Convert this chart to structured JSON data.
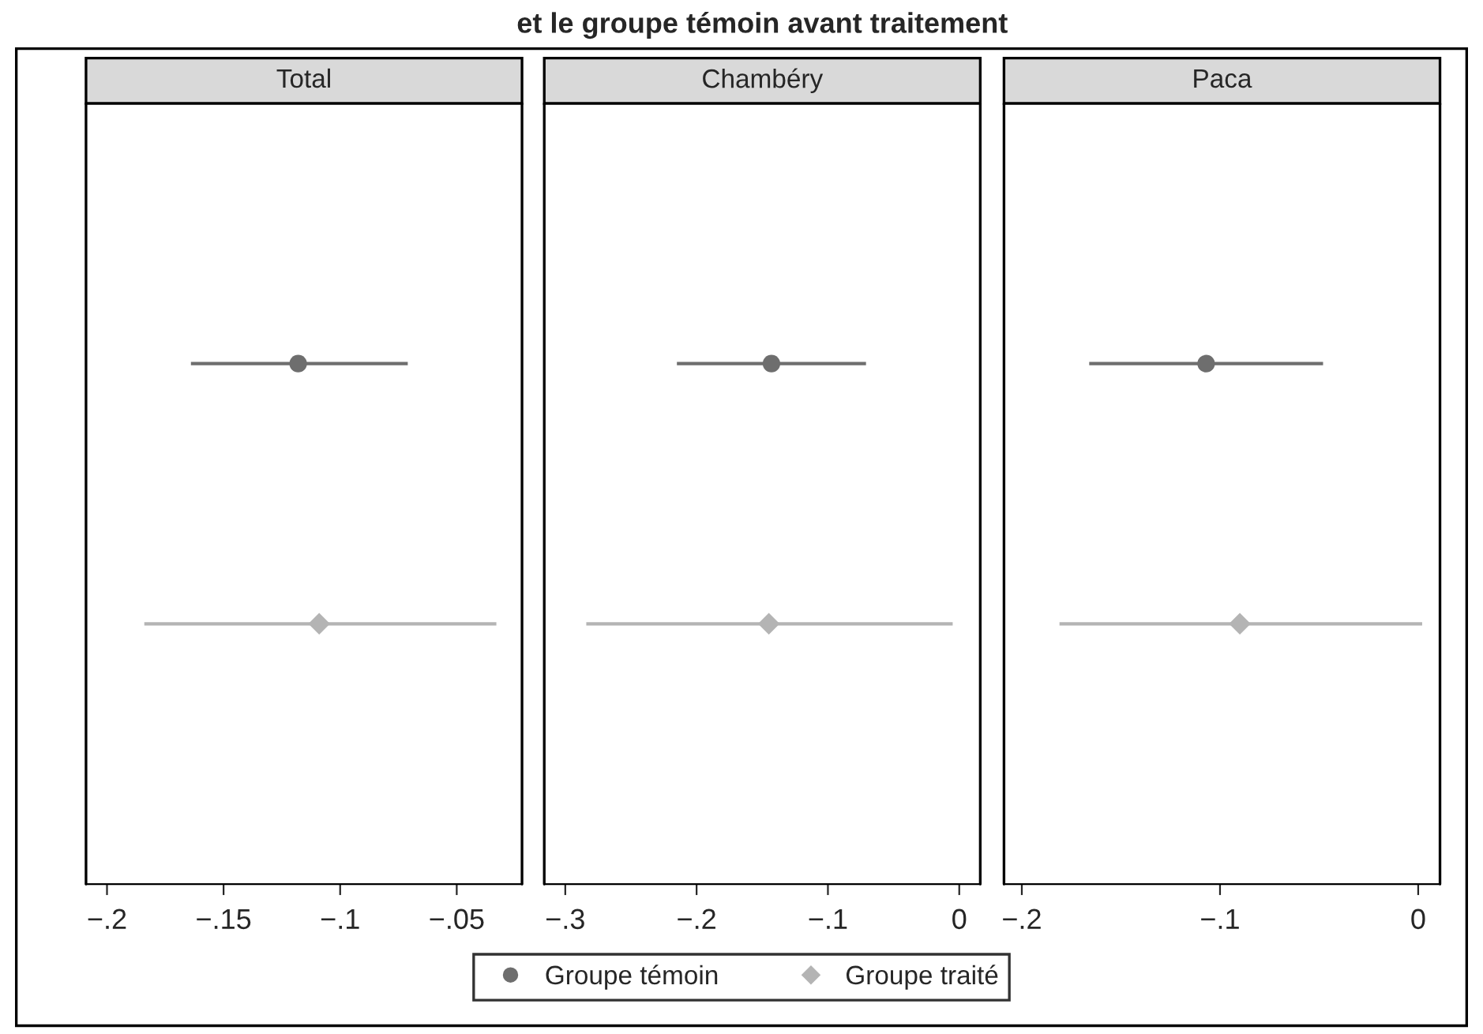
{
  "chart_data": [
    {
      "type": "scatter",
      "orientation": "horizontal",
      "subtitle": "Total",
      "categories": [
        null,
        null
      ],
      "legend": "bottom",
      "grid": false,
      "xlim": [
        -0.209,
        -0.022
      ],
      "xticks": [
        {
          "value": -0.2,
          "label": "−.2"
        },
        {
          "value": -0.15,
          "label": "−.15"
        },
        {
          "value": -0.1,
          "label": "−.1"
        },
        {
          "value": -0.05,
          "label": "−.05"
        }
      ],
      "series": [
        {
          "name": "Groupe témoin",
          "color": "#6e6e6e",
          "marker": "circle",
          "values": [
            -0.118,
            null
          ],
          "errors": [
            [
              -0.164,
              -0.071
            ],
            null
          ]
        },
        {
          "name": "Groupe traité",
          "color": "#b4b4b4",
          "marker": "diamond",
          "values": [
            null,
            -0.109
          ],
          "errors": [
            null,
            [
              -0.184,
              -0.033
            ]
          ]
        }
      ]
    },
    {
      "type": "scatter",
      "orientation": "horizontal",
      "title": "et le groupe témoin avant traitement",
      "subtitle": "Chambéry",
      "categories": [
        null,
        null
      ],
      "grid": false,
      "xlim": [
        -0.316,
        0.016
      ],
      "xticks": [
        {
          "value": -0.3,
          "label": "−.3"
        },
        {
          "value": -0.2,
          "label": "−.2"
        },
        {
          "value": -0.1,
          "label": "−.1"
        },
        0
      ],
      "series": [
        {
          "color": "#6e6e6e",
          "marker": "circle",
          "values": [
            -0.143,
            null
          ],
          "errors": [
            [
              -0.215,
              -0.071
            ],
            null
          ]
        },
        {
          "color": "#b4b4b4",
          "marker": "diamond",
          "values": [
            null,
            -0.145
          ],
          "errors": [
            null,
            [
              -0.284,
              -0.005
            ]
          ]
        }
      ]
    },
    {
      "type": "scatter",
      "orientation": "horizontal",
      "subtitle": "Paca",
      "categories": [
        null,
        null
      ],
      "grid": false,
      "xlim": [
        -0.209,
        0.011
      ],
      "xticks": [
        {
          "value": -0.2,
          "label": "−.2"
        },
        {
          "value": -0.1,
          "label": "−.1"
        },
        0
      ],
      "series": [
        {
          "color": "#6e6e6e",
          "marker": "circle",
          "values": [
            -0.107,
            null
          ],
          "errors": [
            [
              -0.166,
              -0.048
            ],
            null
          ]
        },
        {
          "color": "#b4b4b4",
          "marker": "diamond",
          "values": [
            null,
            -0.09
          ],
          "errors": [
            null,
            [
              -0.181,
              0.002
            ]
          ]
        }
      ]
    }
  ]
}
